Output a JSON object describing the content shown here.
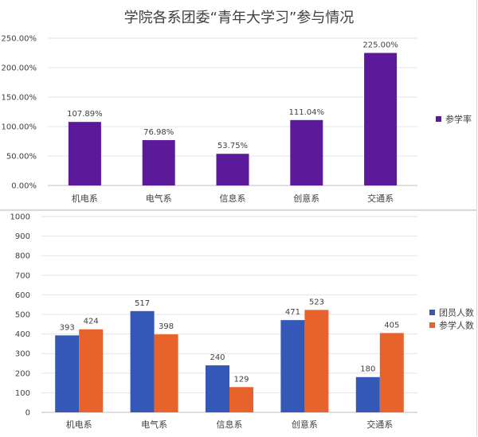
{
  "chart_data": [
    {
      "type": "bar",
      "title": "学院各系团委“青年大学习”参与情况",
      "categories": [
        "机电系",
        "电气系",
        "信息系",
        "创意系",
        "交通系"
      ],
      "series": [
        {
          "name": "参学率",
          "color": "#5b1a99",
          "values": [
            107.89,
            76.98,
            53.75,
            111.04,
            225.0
          ],
          "labels": [
            "107.89%",
            "76.98%",
            "53.75%",
            "111.04%",
            "225.00%"
          ]
        }
      ],
      "yticks": [
        "0.00%",
        "50.00%",
        "100.00%",
        "150.00%",
        "200.00%",
        "250.00%"
      ],
      "ylim": [
        0,
        250
      ],
      "legend": "right"
    },
    {
      "type": "bar",
      "title": "",
      "categories": [
        "机电系",
        "电气系",
        "信息系",
        "创意系",
        "交通系"
      ],
      "series": [
        {
          "name": "团员人数",
          "color": "#3358b8",
          "values": [
            393,
            517,
            240,
            471,
            180
          ]
        },
        {
          "name": "参学人数",
          "color": "#e8632c",
          "values": [
            424,
            398,
            129,
            523,
            405
          ]
        }
      ],
      "yticks": [
        "0",
        "100",
        "200",
        "300",
        "400",
        "500",
        "600",
        "700",
        "800",
        "900",
        "1000"
      ],
      "ylim": [
        0,
        1000
      ],
      "legend": "right"
    }
  ]
}
